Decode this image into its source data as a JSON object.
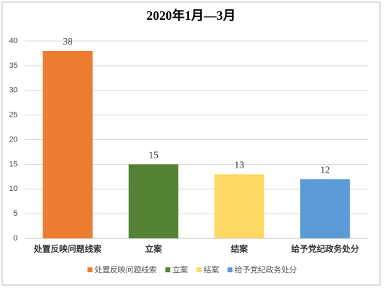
{
  "chart_data": {
    "type": "bar",
    "title": "2020年1月—3月",
    "categories": [
      "处置反映问题线索",
      "立案",
      "结案",
      "给予党纪政务处分"
    ],
    "values": [
      38,
      15,
      13,
      12
    ],
    "colors": [
      "#ed7d31",
      "#548235",
      "#ffd966",
      "#5b9bd5"
    ],
    "ylim": [
      0,
      40
    ],
    "yticks": [
      0,
      5,
      10,
      15,
      20,
      25,
      30,
      35,
      40
    ],
    "grid": true,
    "legend": "bottom"
  }
}
